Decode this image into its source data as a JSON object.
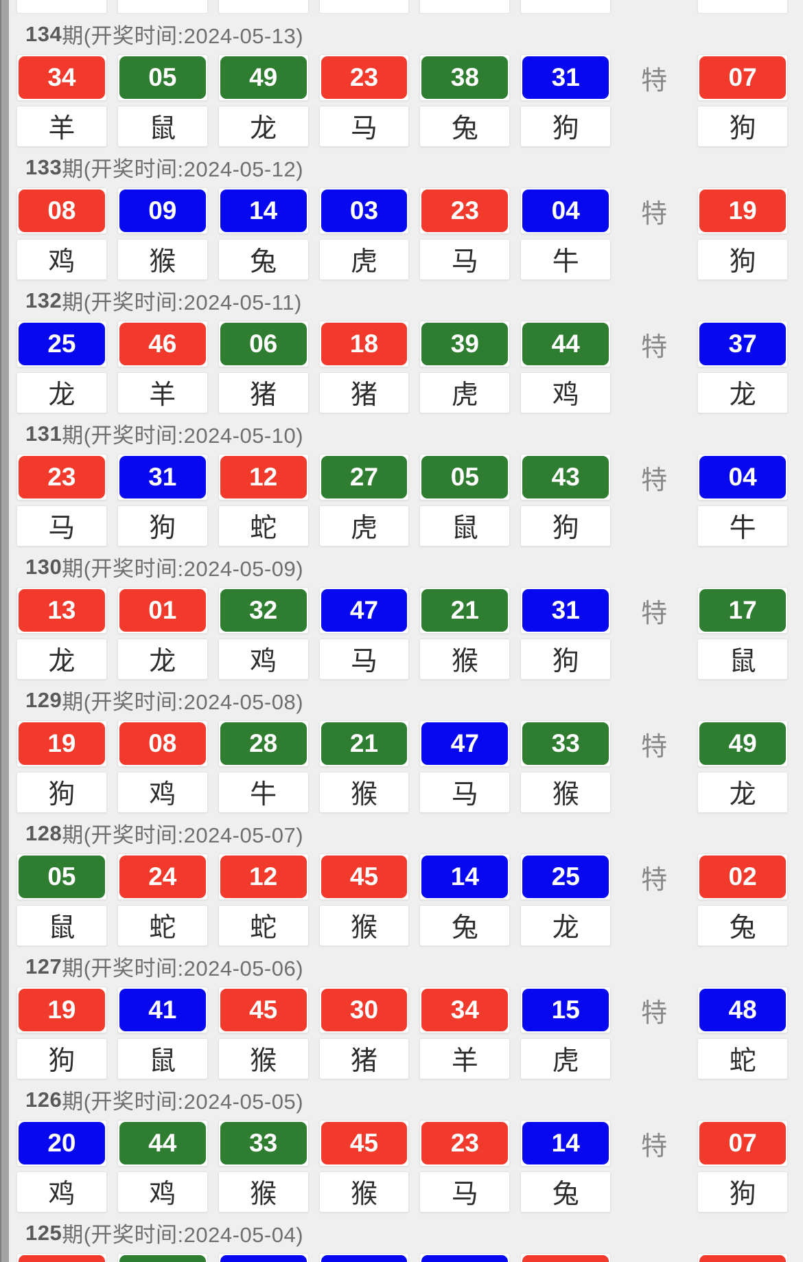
{
  "special_label": "特",
  "colors": {
    "red": "#f23a2c",
    "green": "#2f7d31",
    "blue": "#0808f0"
  },
  "top_partial_row": {
    "card_count": 6,
    "has_special": true
  },
  "sections": [
    {
      "period": "134",
      "title_rest": "期(开奖时间:2024-05-13)",
      "balls": [
        {
          "num": "34",
          "color": "red",
          "zodiac": "羊"
        },
        {
          "num": "05",
          "color": "green",
          "zodiac": "鼠"
        },
        {
          "num": "49",
          "color": "green",
          "zodiac": "龙"
        },
        {
          "num": "23",
          "color": "red",
          "zodiac": "马"
        },
        {
          "num": "38",
          "color": "green",
          "zodiac": "兔"
        },
        {
          "num": "31",
          "color": "blue",
          "zodiac": "狗"
        }
      ],
      "special": {
        "num": "07",
        "color": "red",
        "zodiac": "狗"
      }
    },
    {
      "period": "133",
      "title_rest": "期(开奖时间:2024-05-12)",
      "balls": [
        {
          "num": "08",
          "color": "red",
          "zodiac": "鸡"
        },
        {
          "num": "09",
          "color": "blue",
          "zodiac": "猴"
        },
        {
          "num": "14",
          "color": "blue",
          "zodiac": "兔"
        },
        {
          "num": "03",
          "color": "blue",
          "zodiac": "虎"
        },
        {
          "num": "23",
          "color": "red",
          "zodiac": "马"
        },
        {
          "num": "04",
          "color": "blue",
          "zodiac": "牛"
        }
      ],
      "special": {
        "num": "19",
        "color": "red",
        "zodiac": "狗"
      }
    },
    {
      "period": "132",
      "title_rest": "期(开奖时间:2024-05-11)",
      "balls": [
        {
          "num": "25",
          "color": "blue",
          "zodiac": "龙"
        },
        {
          "num": "46",
          "color": "red",
          "zodiac": "羊"
        },
        {
          "num": "06",
          "color": "green",
          "zodiac": "猪"
        },
        {
          "num": "18",
          "color": "red",
          "zodiac": "猪"
        },
        {
          "num": "39",
          "color": "green",
          "zodiac": "虎"
        },
        {
          "num": "44",
          "color": "green",
          "zodiac": "鸡"
        }
      ],
      "special": {
        "num": "37",
        "color": "blue",
        "zodiac": "龙"
      }
    },
    {
      "period": "131",
      "title_rest": "期(开奖时间:2024-05-10)",
      "balls": [
        {
          "num": "23",
          "color": "red",
          "zodiac": "马"
        },
        {
          "num": "31",
          "color": "blue",
          "zodiac": "狗"
        },
        {
          "num": "12",
          "color": "red",
          "zodiac": "蛇"
        },
        {
          "num": "27",
          "color": "green",
          "zodiac": "虎"
        },
        {
          "num": "05",
          "color": "green",
          "zodiac": "鼠"
        },
        {
          "num": "43",
          "color": "green",
          "zodiac": "狗"
        }
      ],
      "special": {
        "num": "04",
        "color": "blue",
        "zodiac": "牛"
      }
    },
    {
      "period": "130",
      "title_rest": "期(开奖时间:2024-05-09)",
      "balls": [
        {
          "num": "13",
          "color": "red",
          "zodiac": "龙"
        },
        {
          "num": "01",
          "color": "red",
          "zodiac": "龙"
        },
        {
          "num": "32",
          "color": "green",
          "zodiac": "鸡"
        },
        {
          "num": "47",
          "color": "blue",
          "zodiac": "马"
        },
        {
          "num": "21",
          "color": "green",
          "zodiac": "猴"
        },
        {
          "num": "31",
          "color": "blue",
          "zodiac": "狗"
        }
      ],
      "special": {
        "num": "17",
        "color": "green",
        "zodiac": "鼠"
      }
    },
    {
      "period": "129",
      "title_rest": "期(开奖时间:2024-05-08)",
      "balls": [
        {
          "num": "19",
          "color": "red",
          "zodiac": "狗"
        },
        {
          "num": "08",
          "color": "red",
          "zodiac": "鸡"
        },
        {
          "num": "28",
          "color": "green",
          "zodiac": "牛"
        },
        {
          "num": "21",
          "color": "green",
          "zodiac": "猴"
        },
        {
          "num": "47",
          "color": "blue",
          "zodiac": "马"
        },
        {
          "num": "33",
          "color": "green",
          "zodiac": "猴"
        }
      ],
      "special": {
        "num": "49",
        "color": "green",
        "zodiac": "龙"
      }
    },
    {
      "period": "128",
      "title_rest": "期(开奖时间:2024-05-07)",
      "balls": [
        {
          "num": "05",
          "color": "green",
          "zodiac": "鼠"
        },
        {
          "num": "24",
          "color": "red",
          "zodiac": "蛇"
        },
        {
          "num": "12",
          "color": "red",
          "zodiac": "蛇"
        },
        {
          "num": "45",
          "color": "red",
          "zodiac": "猴"
        },
        {
          "num": "14",
          "color": "blue",
          "zodiac": "兔"
        },
        {
          "num": "25",
          "color": "blue",
          "zodiac": "龙"
        }
      ],
      "special": {
        "num": "02",
        "color": "red",
        "zodiac": "兔"
      }
    },
    {
      "period": "127",
      "title_rest": "期(开奖时间:2024-05-06)",
      "balls": [
        {
          "num": "19",
          "color": "red",
          "zodiac": "狗"
        },
        {
          "num": "41",
          "color": "blue",
          "zodiac": "鼠"
        },
        {
          "num": "45",
          "color": "red",
          "zodiac": "猴"
        },
        {
          "num": "30",
          "color": "red",
          "zodiac": "猪"
        },
        {
          "num": "34",
          "color": "red",
          "zodiac": "羊"
        },
        {
          "num": "15",
          "color": "blue",
          "zodiac": "虎"
        }
      ],
      "special": {
        "num": "48",
        "color": "blue",
        "zodiac": "蛇"
      }
    },
    {
      "period": "126",
      "title_rest": "期(开奖时间:2024-05-05)",
      "balls": [
        {
          "num": "20",
          "color": "blue",
          "zodiac": "鸡"
        },
        {
          "num": "44",
          "color": "green",
          "zodiac": "鸡"
        },
        {
          "num": "33",
          "color": "green",
          "zodiac": "猴"
        },
        {
          "num": "45",
          "color": "red",
          "zodiac": "猴"
        },
        {
          "num": "23",
          "color": "red",
          "zodiac": "马"
        },
        {
          "num": "14",
          "color": "blue",
          "zodiac": "兔"
        }
      ],
      "special": {
        "num": "07",
        "color": "red",
        "zodiac": "狗"
      }
    }
  ],
  "partial_section": {
    "period": "125",
    "title_rest": "期(开奖时间:2024-05-04)",
    "ball_colors": [
      "red",
      "green",
      "blue",
      "blue",
      "blue",
      "red"
    ],
    "special_color": "red"
  }
}
